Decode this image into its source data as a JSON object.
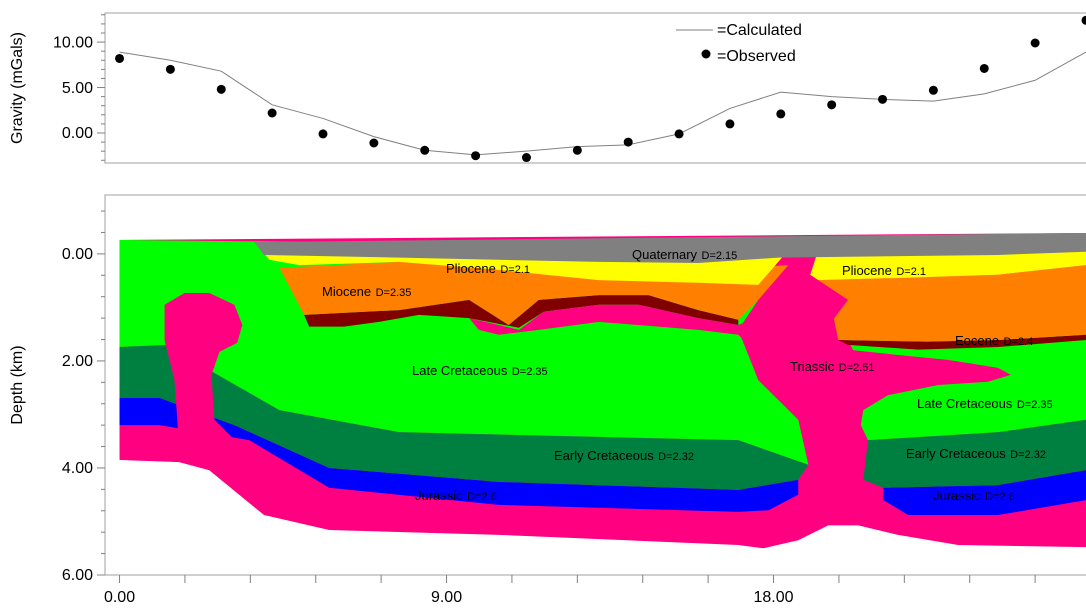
{
  "chart_data": [
    {
      "type": "line",
      "ylabel": "Gravity (mGals)",
      "xlim": [
        -0.4,
        26.6
      ],
      "ylim": [
        -3.3,
        13.2
      ],
      "yticks": [
        {
          "value": 0,
          "label": "0.00"
        },
        {
          "value": 5,
          "label": "5.00"
        },
        {
          "value": 10,
          "label": "10.00"
        }
      ],
      "yminorticks": [
        -3,
        -2,
        -1,
        1,
        2,
        3,
        4,
        6,
        7,
        8,
        9,
        11,
        12,
        13
      ],
      "legend": "upper right",
      "grid": false,
      "series": [
        {
          "name": "=Calculated",
          "color": "#808080",
          "mark": "line",
          "x": [
            0,
            1.4,
            2.8,
            4.2,
            5.6,
            7,
            8.4,
            9.8,
            11.2,
            12.6,
            14,
            15.4,
            16.8,
            18.2,
            19.6,
            21,
            22.4,
            23.8,
            25.2,
            26.6
          ],
          "values": [
            8.9,
            8.0,
            6.8,
            3.1,
            1.6,
            -0.4,
            -1.9,
            -2.4,
            -2.0,
            -1.5,
            -1.3,
            -0.1,
            2.7,
            4.5,
            4.0,
            3.7,
            3.5,
            4.3,
            5.8,
            8.9
          ]
        },
        {
          "name": "=Observed",
          "color": "#000000",
          "mark": "dot",
          "x": [
            0,
            1.4,
            2.8,
            4.2,
            5.6,
            7,
            8.4,
            9.8,
            11.2,
            12.6,
            14,
            15.4,
            16.8,
            18.2,
            19.6,
            21,
            22.4,
            23.8,
            25.2,
            26.6
          ],
          "values": [
            8.2,
            7.0,
            4.8,
            2.2,
            -0.1,
            -1.1,
            -1.9,
            -2.5,
            -2.7,
            -1.9,
            -1.0,
            -0.1,
            1.0,
            2.1,
            3.1,
            3.7,
            4.7,
            7.1,
            9.9,
            12.4
          ]
        }
      ]
    },
    {
      "type": "cross-section",
      "ylabel": "Depth (km)",
      "xlim": [
        -0.4,
        26.6
      ],
      "ylim": [
        6,
        -1.1
      ],
      "xticks": [
        {
          "value": 0,
          "label": "0.00"
        },
        {
          "value": 9,
          "label": "9.00"
        },
        {
          "value": 18,
          "label": "18.00"
        }
      ],
      "xminorticks": [
        1.8,
        3.6,
        5.4,
        7.2,
        10.8,
        12.6,
        14.4,
        16.2,
        19.8,
        21.6,
        23.4,
        25.2
      ],
      "yticks": [
        {
          "value": 0,
          "label": "0.00"
        },
        {
          "value": 2,
          "label": "2.00"
        },
        {
          "value": 4,
          "label": "4.00"
        },
        {
          "value": 6,
          "label": "6.00"
        }
      ],
      "yminorticks": [
        -0.8,
        -0.4,
        0.4,
        0.8,
        1.2,
        1.6,
        2.4,
        2.8,
        3.2,
        3.6,
        4.4,
        4.8,
        5.2,
        5.6
      ],
      "layers": [
        {
          "name": "Quaternary",
          "density": "D=2.15",
          "color": "#808080",
          "polygons": [
            {
              "x": [
                3.71,
                26.6,
                26.6,
                24.18,
                19.23,
                18.13,
                15.93,
                13.19,
                7.69,
                3.98
              ],
              "y": [
                -0.22,
                -0.39,
                -0.04,
                0.02,
                0.06,
                0.07,
                0.17,
                0.15,
                0.07,
                0.02
              ]
            }
          ]
        },
        {
          "name": "Pliocene",
          "density": "D=2.1",
          "color": "#ffff00",
          "polygons": [
            {
              "x": [
                3.79,
                18.41,
                17.58,
                15.93,
                13.19,
                10.44,
                7.69,
                4.95,
                4.12
              ],
              "y": [
                -0.17,
                -0.07,
                0.58,
                0.54,
                0.49,
                0.3,
                0.15,
                0.21,
                0.11
              ]
            },
            {
              "x": [
                19.23,
                26.6,
                26.6,
                24.18,
                21.43,
                19.23,
                19.01
              ],
              "y": [
                -0.07,
                -0.17,
                0.21,
                0.39,
                0.45,
                0.49,
                0.39
              ]
            }
          ]
        },
        {
          "name": "Miocene",
          "density": "D=2.35",
          "color": "#ff8000",
          "polygons": [
            {
              "x": [
                4.4,
                7.69,
                10.44,
                13.19,
                15.93,
                18.41,
                17.58,
                17.03,
                15.93,
                14.56,
                13.19,
                11.54,
                10.71,
                9.62,
                7.69,
                5.08
              ],
              "y": [
                0.26,
                0.15,
                0.26,
                0.34,
                0.3,
                0.21,
                0.86,
                1.23,
                1.05,
                0.77,
                0.77,
                0.86,
                1.33,
                0.86,
                1.05,
                1.14
              ]
            },
            {
              "x": [
                19.23,
                24.18,
                26.6,
                26.6,
                24.18,
                22.25,
                19.78,
                19.64,
                20.05
              ],
              "y": [
                0.49,
                0.39,
                0.21,
                1.51,
                1.61,
                1.64,
                1.61,
                1.14,
                0.86
              ]
            }
          ]
        },
        {
          "name": "Eocene",
          "density": "D=2.4",
          "color": "#800000",
          "polygons": [
            {
              "x": [
                5.08,
                7.69,
                9.62,
                10.71,
                11.54,
                13.19,
                14.56,
                15.93,
                17.03,
                17.03,
                15.93,
                14.29,
                13.19,
                11.68,
                10.99,
                9.62,
                8.24,
                7.14,
                6.18,
                5.22
              ],
              "y": [
                1.14,
                1.05,
                0.86,
                1.33,
                0.86,
                0.77,
                0.77,
                1.05,
                1.23,
                1.33,
                1.2,
                0.95,
                0.95,
                1.08,
                1.38,
                1.2,
                1.14,
                1.27,
                1.36,
                1.36
              ]
            },
            {
              "x": [
                19.78,
                22.25,
                24.18,
                26.6,
                26.6,
                24.18,
                21.98,
                20.05
              ],
              "y": [
                1.61,
                1.64,
                1.61,
                1.51,
                1.61,
                1.74,
                1.79,
                1.7
              ]
            }
          ]
        },
        {
          "name": "Late Cretaceous",
          "density": "D=2.35",
          "color": "#00ff00",
          "polygons": [
            {
              "x": [
                0,
                13.19,
                17.86,
                17.58,
                17.03,
                17.58,
                18.68,
                18.96,
                17.03,
                13.19,
                7.69,
                4.4,
                2.47,
                1.37,
                0
              ],
              "y": [
                -0.26,
                -0.17,
                0.3,
                0.86,
                1.42,
                2.36,
                3.1,
                3.94,
                3.48,
                3.42,
                3.33,
                2.92,
                2.17,
                1.7,
                1.74
              ]
            },
            {
              "x": [
                20.05,
                26.6,
                26.6,
                24.18,
                20.6,
                20.33,
                20.33
              ],
              "y": [
                1.61,
                1.51,
                3.1,
                3.33,
                3.48,
                3.1,
                1.98
              ]
            }
          ]
        },
        {
          "name": "Early Cretaceous",
          "density": "D=2.32",
          "color": "#008040",
          "polygons": [
            {
              "x": [
                0,
                1.37,
                2.47,
                4.4,
                7.69,
                13.19,
                17.03,
                18.96,
                18.68,
                17.03,
                10.44,
                5.77,
                3.16,
                1.1,
                0
              ],
              "y": [
                1.74,
                1.7,
                2.17,
                2.92,
                3.33,
                3.42,
                3.48,
                3.94,
                4.22,
                4.41,
                4.26,
                4.0,
                3.2,
                2.69,
                2.69
              ]
            },
            {
              "x": [
                20.6,
                24.18,
                26.6,
                26.6,
                24.18,
                21.02,
                20.47
              ],
              "y": [
                3.48,
                3.33,
                3.1,
                4.04,
                4.32,
                4.37,
                4.22
              ]
            }
          ]
        },
        {
          "name": "Jurassic",
          "density": "D=2.6",
          "color": "#0000ff",
          "polygons": [
            {
              "x": [
                0,
                1.1,
                3.16,
                5.77,
                10.44,
                17.03,
                18.68,
                18.68,
                17.86,
                17.03,
                10.44,
                5.77,
                3.57,
                1.1,
                0
              ],
              "y": [
                2.69,
                2.69,
                3.2,
                4.0,
                4.26,
                4.41,
                4.22,
                4.5,
                4.79,
                4.82,
                4.69,
                4.37,
                3.48,
                3.2,
                3.2
              ]
            },
            {
              "x": [
                21.02,
                24.18,
                26.6,
                26.6,
                24.18,
                21.7,
                21.02
              ],
              "y": [
                4.37,
                4.32,
                4.04,
                4.6,
                4.88,
                4.88,
                4.6
              ]
            }
          ]
        },
        {
          "name": "Triassic",
          "density": "D=2.51",
          "color": "#ff0080",
          "polygons": [
            {
              "x": [
                0,
                26.6,
                26.6,
                23.08,
                21.43,
                20.33,
                19.51,
                18.68,
                17.72,
                17.03,
                10.44,
                5.77,
                3.98,
                2.47,
                1.65,
                0
              ],
              "y": [
                -0.26,
                -0.39,
                5.48,
                5.44,
                5.25,
                5.07,
                5.07,
                5.35,
                5.5,
                5.44,
                5.25,
                5.16,
                4.88,
                4.04,
                3.89,
                3.85
              ]
            },
            {
              "x": [
                1.24,
                1.79,
                2.47,
                3.16,
                3.38,
                3.24,
                2.75,
                2.53,
                2.61,
                3.43,
                4.12,
                3.98,
                2.47,
                1.65,
                1.59,
                1.51,
                1.24
              ],
              "y": [
                0.95,
                0.73,
                0.73,
                0.95,
                1.33,
                1.66,
                1.83,
                2.26,
                3.1,
                3.66,
                4.22,
                4.88,
                4.04,
                3.89,
                3.1,
                2.36,
                1.61
              ]
            },
            {
              "x": [
                9.62,
                10.99,
                11.68,
                13.19,
                14.29,
                15.93,
                17.03,
                18.41,
                19.23,
                20.05,
                19.64,
                19.64,
                20.05,
                21.43,
                22.8,
                24.18,
                24.53,
                23.9,
                22.53,
                21.15,
                20.47,
                20.33,
                20.47,
                21.02,
                21.7,
                21.43,
                20.33,
                19.51,
                19.23,
                19.23,
                18.82,
                17.99,
                17.45,
                17.03,
                15.93,
                13.19,
                11.54,
                10.44,
                9.89
              ],
              "y": [
                1.2,
                1.42,
                1.08,
                0.95,
                0.95,
                1.2,
                1.33,
                0.95,
                0.82,
                0.86,
                1.23,
                1.7,
                1.79,
                1.89,
                1.98,
                2.13,
                2.26,
                2.39,
                2.45,
                2.64,
                2.92,
                3.48,
                4.22,
                4.6,
                4.88,
                5.25,
                5.07,
                5.07,
                4.22,
                3.48,
                2.92,
                2.36,
                1.79,
                1.51,
                1.42,
                1.27,
                1.42,
                1.51,
                1.42
              ]
            }
          ]
        }
      ]
    }
  ]
}
